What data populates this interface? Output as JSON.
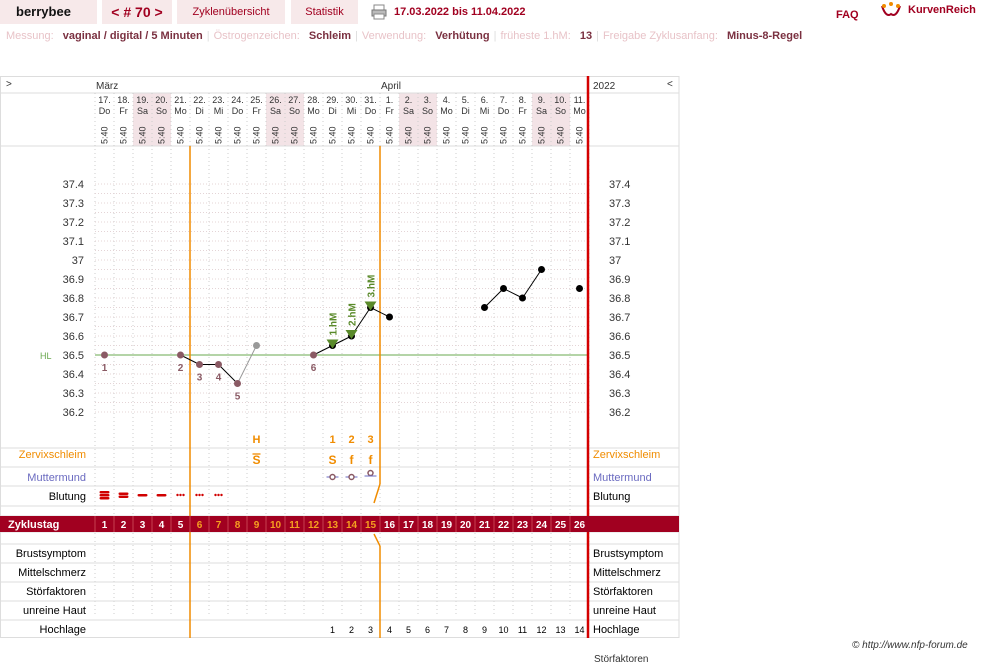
{
  "header": {
    "app_name": "berrybee",
    "cycle_nav": "< # 70 >",
    "tab_overview": "Zyklenübersicht",
    "tab_stats": "Statistik",
    "date_range": "17.03.2022 bis 11.04.2022",
    "faq": "FAQ",
    "brand": "KurvenReich"
  },
  "info": [
    {
      "label": "Messung:",
      "value": "vaginal / digital / 5 Minuten"
    },
    {
      "label": "Östrogenzeichen:",
      "value": "Schleim"
    },
    {
      "label": "Verwendung:",
      "value": "Verhütung"
    },
    {
      "label": "früheste 1.hM:",
      "value": "13"
    },
    {
      "label": "Freigabe Zyklusanfang:",
      "value": "Minus-8-Regel"
    }
  ],
  "chart_data": {
    "type": "line",
    "months": [
      {
        "label": "März",
        "day_index": 0
      },
      {
        "label": "April",
        "day_index": 15
      }
    ],
    "year": "2022",
    "nav_left": ">",
    "nav_right": "<",
    "dates": [
      "17.",
      "18.",
      "19.",
      "20.",
      "21.",
      "22.",
      "23.",
      "24.",
      "25.",
      "26.",
      "27.",
      "28.",
      "29.",
      "30.",
      "31.",
      "1.",
      "2.",
      "3.",
      "4.",
      "5.",
      "6.",
      "7.",
      "8.",
      "9.",
      "10.",
      "11."
    ],
    "weekdays": [
      "Do",
      "Fr",
      "Sa",
      "So",
      "Mo",
      "Di",
      "Mi",
      "Do",
      "Fr",
      "Sa",
      "So",
      "Mo",
      "Di",
      "Mi",
      "Do",
      "Fr",
      "Sa",
      "So",
      "Mo",
      "Di",
      "Mi",
      "Do",
      "Fr",
      "Sa",
      "So",
      "Mo"
    ],
    "weekend_idx": [
      2,
      3,
      9,
      10,
      16,
      17,
      23,
      24
    ],
    "time": "5:40",
    "y_ticks": [
      "37.4",
      "37.3",
      "37.2",
      "37.1",
      "37",
      "36.9",
      "36.8",
      "36.7",
      "36.6",
      "36.5",
      "36.4",
      "36.3",
      "36.2"
    ],
    "ylim": [
      36.2,
      37.4
    ],
    "coverline_label": "HL",
    "coverline_value": 36.5,
    "temperatures": [
      36.5,
      null,
      null,
      null,
      36.5,
      36.45,
      36.45,
      36.35,
      36.55,
      null,
      null,
      36.5,
      36.55,
      36.6,
      36.75,
      36.7,
      null,
      null,
      null,
      null,
      36.75,
      36.85,
      36.8,
      36.95,
      null,
      36.85
    ],
    "excluded_idx": [
      8
    ],
    "low_numbers": [
      {
        "day": 0,
        "label": "1"
      },
      {
        "day": 4,
        "label": "2"
      },
      {
        "day": 5,
        "label": "3"
      },
      {
        "day": 6,
        "label": "4"
      },
      {
        "day": 7,
        "label": "5"
      },
      {
        "day": 11,
        "label": "6"
      }
    ],
    "high_markers": [
      {
        "day": 12,
        "label": "1.hM"
      },
      {
        "day": 13,
        "label": "2.hM"
      },
      {
        "day": 14,
        "label": "3.hM"
      }
    ],
    "row_labels": {
      "cervical_mucus": "Zervixschleim",
      "cervix": "Muttermund",
      "bleeding": "Blutung"
    },
    "mucus_top": [
      {
        "day": 8,
        "label": "H"
      },
      {
        "day": 12,
        "label": "1"
      },
      {
        "day": 13,
        "label": "2"
      },
      {
        "day": 14,
        "label": "3"
      }
    ],
    "mucus": [
      {
        "day": 8,
        "label": "S"
      },
      {
        "day": 12,
        "label": "S"
      },
      {
        "day": 13,
        "label": "f"
      },
      {
        "day": 14,
        "label": "f"
      }
    ],
    "cervix": [
      12,
      13,
      14
    ],
    "bleeding": [
      {
        "day": 0,
        "kind": "heavy"
      },
      {
        "day": 1,
        "kind": "medium"
      },
      {
        "day": 2,
        "kind": "light"
      },
      {
        "day": 3,
        "kind": "light"
      },
      {
        "day": 4,
        "kind": "spot"
      },
      {
        "day": 5,
        "kind": "spot"
      },
      {
        "day": 6,
        "kind": "spot"
      }
    ],
    "cycle_day_label": "Zyklustag",
    "cycle_days": [
      "1",
      "2",
      "3",
      "4",
      "5",
      "6",
      "7",
      "8",
      "9",
      "10",
      "11",
      "12",
      "13",
      "14",
      "15",
      "16",
      "17",
      "18",
      "19",
      "20",
      "21",
      "22",
      "23",
      "24",
      "25",
      "26"
    ],
    "highlight_days_idx": [
      5,
      6,
      7,
      8,
      9,
      10,
      11,
      12,
      13,
      14
    ],
    "bottom_labels": [
      "Brustsymptom",
      "Mittelschmerz",
      "Störfaktoren",
      "unreine Haut",
      "Hochlage"
    ],
    "hochlage": [
      {
        "day": 12,
        "label": "1"
      },
      {
        "day": 13,
        "label": "2"
      },
      {
        "day": 14,
        "label": "3"
      },
      {
        "day": 15,
        "label": "4"
      },
      {
        "day": 16,
        "label": "5"
      },
      {
        "day": 17,
        "label": "6"
      },
      {
        "day": 18,
        "label": "7"
      },
      {
        "day": 19,
        "label": "8"
      },
      {
        "day": 20,
        "label": "9"
      },
      {
        "day": 21,
        "label": "10"
      },
      {
        "day": 22,
        "label": "11"
      },
      {
        "day": 23,
        "label": "12"
      },
      {
        "day": 24,
        "label": "13"
      },
      {
        "day": 25,
        "label": "14"
      }
    ],
    "fertile_start_idx": 5,
    "fertile_end_idx": 14
  },
  "footer": {
    "copyright": "© http://www.nfp-forum.de",
    "cut_label": "Störfaktoren"
  },
  "colors": {
    "accent": "#a10020",
    "orange": "#f08c00",
    "green": "#5a8a2a",
    "coverline": "#6aa84f",
    "low_label": "#8a5a64",
    "cervix": "#6a6ac0",
    "weekend": "#f3e3e6",
    "red_line": "#d40000"
  }
}
